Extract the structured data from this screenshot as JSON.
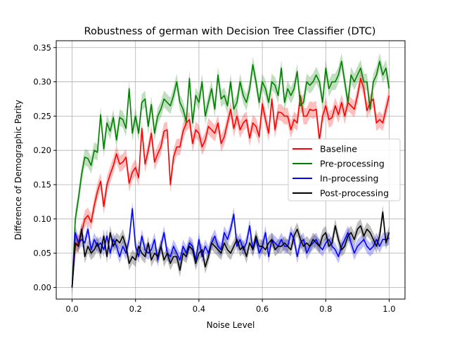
{
  "chart_data": {
    "type": "line",
    "title": "Robustness of german with Decision Tree Classifier (DTC)",
    "xlabel": "Noise Level",
    "ylabel": "Difference of Demographic Parity",
    "xlim": [
      -0.05,
      1.05
    ],
    "ylim": [
      -0.017,
      0.36
    ],
    "xticks": [
      0.0,
      0.2,
      0.4,
      0.6,
      0.8,
      1.0
    ],
    "xtick_labels": [
      "0.0",
      "0.2",
      "0.4",
      "0.6",
      "0.8",
      "1.0"
    ],
    "yticks": [
      0.0,
      0.05,
      0.1,
      0.15,
      0.2,
      0.25,
      0.3,
      0.35
    ],
    "ytick_labels": [
      "0.00",
      "0.05",
      "0.10",
      "0.15",
      "0.20",
      "0.25",
      "0.30",
      "0.35"
    ],
    "grid": true,
    "legend_position": "center-right",
    "x": [
      0.0,
      0.01,
      0.02,
      0.03,
      0.04,
      0.05,
      0.06,
      0.07,
      0.08,
      0.09,
      0.1,
      0.11,
      0.12,
      0.13,
      0.14,
      0.15,
      0.16,
      0.17,
      0.18,
      0.19,
      0.2,
      0.21,
      0.22,
      0.23,
      0.24,
      0.25,
      0.26,
      0.27,
      0.28,
      0.29,
      0.3,
      0.31,
      0.32,
      0.33,
      0.34,
      0.35,
      0.36,
      0.37,
      0.38,
      0.39,
      0.4,
      0.41,
      0.42,
      0.43,
      0.44,
      0.45,
      0.46,
      0.47,
      0.48,
      0.49,
      0.5,
      0.51,
      0.52,
      0.53,
      0.54,
      0.55,
      0.56,
      0.57,
      0.58,
      0.59,
      0.6,
      0.61,
      0.62,
      0.63,
      0.64,
      0.65,
      0.66,
      0.67,
      0.68,
      0.69,
      0.7,
      0.71,
      0.72,
      0.73,
      0.74,
      0.75,
      0.76,
      0.77,
      0.78,
      0.79,
      0.8,
      0.81,
      0.82,
      0.83,
      0.84,
      0.85,
      0.86,
      0.87,
      0.88,
      0.89,
      0.9,
      0.91,
      0.92,
      0.93,
      0.94,
      0.95,
      0.96,
      0.97,
      0.98,
      0.99,
      1.0
    ],
    "series": [
      {
        "name": "Baseline",
        "color": "#ff0000",
        "values": [
          0.0,
          0.06,
          0.065,
          0.08,
          0.1,
          0.105,
          0.095,
          0.12,
          0.14,
          0.155,
          0.118,
          0.15,
          0.165,
          0.178,
          0.195,
          0.18,
          0.183,
          0.19,
          0.152,
          0.168,
          0.175,
          0.16,
          0.232,
          0.18,
          0.2,
          0.225,
          0.183,
          0.195,
          0.205,
          0.228,
          0.23,
          0.15,
          0.19,
          0.205,
          0.205,
          0.228,
          0.24,
          0.245,
          0.21,
          0.23,
          0.225,
          0.205,
          0.215,
          0.235,
          0.23,
          0.225,
          0.24,
          0.21,
          0.22,
          0.24,
          0.26,
          0.232,
          0.25,
          0.23,
          0.24,
          0.245,
          0.218,
          0.24,
          0.235,
          0.22,
          0.268,
          0.245,
          0.225,
          0.275,
          0.23,
          0.256,
          0.255,
          0.25,
          0.25,
          0.23,
          0.245,
          0.24,
          0.28,
          0.25,
          0.25,
          0.26,
          0.258,
          0.26,
          0.215,
          0.25,
          0.265,
          0.245,
          0.248,
          0.265,
          0.252,
          0.27,
          0.25,
          0.27,
          0.265,
          0.26,
          0.28,
          0.305,
          0.29,
          0.258,
          0.27,
          0.275,
          0.24,
          0.245,
          0.24,
          0.26,
          0.28
        ]
      },
      {
        "name": "Pre-processing",
        "color": "#008000",
        "values": [
          0.0,
          0.1,
          0.13,
          0.165,
          0.19,
          0.188,
          0.178,
          0.2,
          0.197,
          0.252,
          0.202,
          0.24,
          0.228,
          0.248,
          0.215,
          0.248,
          0.245,
          0.232,
          0.29,
          0.225,
          0.25,
          0.225,
          0.27,
          0.275,
          0.235,
          0.267,
          0.225,
          0.25,
          0.26,
          0.275,
          0.27,
          0.265,
          0.28,
          0.3,
          0.27,
          0.26,
          0.242,
          0.305,
          0.24,
          0.28,
          0.27,
          0.3,
          0.25,
          0.27,
          0.29,
          0.26,
          0.31,
          0.275,
          0.28,
          0.265,
          0.3,
          0.26,
          0.27,
          0.3,
          0.28,
          0.27,
          0.29,
          0.325,
          0.3,
          0.27,
          0.3,
          0.29,
          0.27,
          0.3,
          0.295,
          0.28,
          0.32,
          0.27,
          0.29,
          0.28,
          0.29,
          0.315,
          0.265,
          0.27,
          0.3,
          0.295,
          0.3,
          0.31,
          0.3,
          0.27,
          0.32,
          0.29,
          0.3,
          0.3,
          0.31,
          0.33,
          0.3,
          0.27,
          0.31,
          0.3,
          0.31,
          0.32,
          0.3,
          0.3,
          0.26,
          0.3,
          0.31,
          0.33,
          0.31,
          0.32,
          0.29
        ]
      },
      {
        "name": "In-processing",
        "color": "#0000ff",
        "values": [
          0.0,
          0.08,
          0.065,
          0.07,
          0.065,
          0.085,
          0.055,
          0.07,
          0.06,
          0.065,
          0.055,
          0.075,
          0.05,
          0.07,
          0.06,
          0.045,
          0.06,
          0.05,
          0.07,
          0.115,
          0.06,
          0.045,
          0.075,
          0.055,
          0.05,
          0.055,
          0.07,
          0.04,
          0.06,
          0.08,
          0.05,
          0.045,
          0.06,
          0.05,
          0.04,
          0.06,
          0.05,
          0.065,
          0.06,
          0.04,
          0.07,
          0.045,
          0.06,
          0.05,
          0.065,
          0.075,
          0.06,
          0.055,
          0.08,
          0.07,
          0.085,
          0.107,
          0.06,
          0.07,
          0.055,
          0.065,
          0.09,
          0.055,
          0.07,
          0.05,
          0.06,
          0.08,
          0.045,
          0.07,
          0.065,
          0.06,
          0.07,
          0.06,
          0.06,
          0.08,
          0.07,
          0.045,
          0.065,
          0.07,
          0.05,
          0.06,
          0.065,
          0.07,
          0.06,
          0.055,
          0.065,
          0.07,
          0.06,
          0.055,
          0.045,
          0.06,
          0.07,
          0.08,
          0.065,
          0.05,
          0.06,
          0.065,
          0.07,
          0.06,
          0.055,
          0.06,
          0.07,
          0.06,
          0.07,
          0.07,
          0.072
        ]
      },
      {
        "name": "Post-processing",
        "color": "#000000",
        "values": [
          0.0,
          0.065,
          0.06,
          0.085,
          0.045,
          0.06,
          0.05,
          0.055,
          0.065,
          0.05,
          0.075,
          0.045,
          0.08,
          0.06,
          0.07,
          0.065,
          0.075,
          0.06,
          0.035,
          0.045,
          0.04,
          0.06,
          0.05,
          0.045,
          0.065,
          0.04,
          0.05,
          0.045,
          0.06,
          0.04,
          0.05,
          0.035,
          0.045,
          0.045,
          0.025,
          0.05,
          0.045,
          0.06,
          0.055,
          0.035,
          0.05,
          0.055,
          0.03,
          0.045,
          0.065,
          0.06,
          0.055,
          0.05,
          0.065,
          0.055,
          0.05,
          0.06,
          0.07,
          0.055,
          0.06,
          0.045,
          0.065,
          0.055,
          0.075,
          0.06,
          0.06,
          0.055,
          0.065,
          0.07,
          0.055,
          0.06,
          0.06,
          0.065,
          0.06,
          0.055,
          0.075,
          0.085,
          0.07,
          0.06,
          0.065,
          0.06,
          0.07,
          0.065,
          0.06,
          0.075,
          0.08,
          0.06,
          0.065,
          0.09,
          0.07,
          0.055,
          0.06,
          0.075,
          0.08,
          0.07,
          0.085,
          0.09,
          0.075,
          0.085,
          0.08,
          0.07,
          0.06,
          0.075,
          0.11,
          0.065,
          0.08
        ]
      }
    ],
    "band_halfwidth": [
      0.012,
      0.012,
      0.01,
      0.01
    ]
  }
}
